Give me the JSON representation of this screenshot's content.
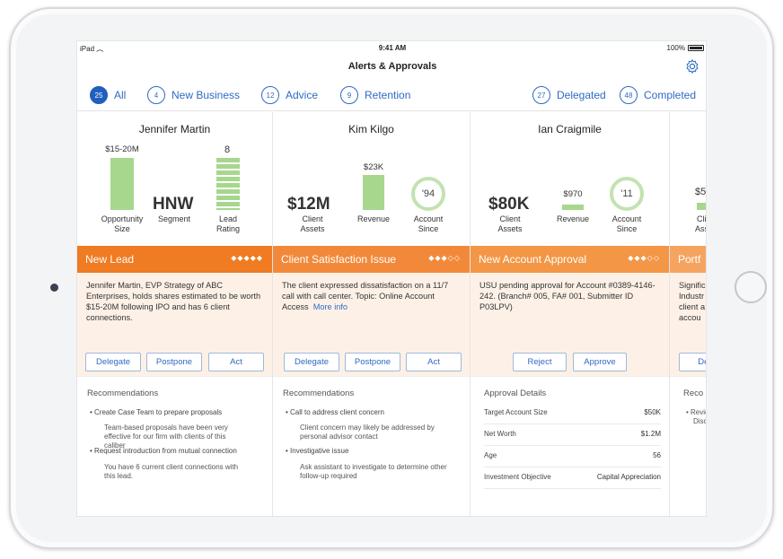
{
  "status": {
    "carrier": "iPad",
    "time": "9:41 AM",
    "battery": "100%"
  },
  "nav": {
    "title": "Alerts & Approvals"
  },
  "filters": [
    {
      "count": "25",
      "label": "All",
      "active": true
    },
    {
      "count": "4",
      "label": "New Business"
    },
    {
      "count": "12",
      "label": "Advice"
    },
    {
      "count": "9",
      "label": "Retention"
    },
    {
      "count": "27",
      "label": "Delegated"
    },
    {
      "count": "48",
      "label": "Completed"
    }
  ],
  "colors": {
    "orange": "#ef7b22",
    "light_orange": "#f49a4e",
    "bar_green": "#a7d78d",
    "ring_green": "#c3e2b1",
    "link_blue": "#2f6ac3"
  },
  "cards": [
    {
      "name": "Jennifer Martin",
      "metrics": {
        "opportunity_value": "$15-20M",
        "opportunity_label": "Opportunity\nSize",
        "segment_value": "HNW",
        "segment_label": "Segment",
        "lead_value": "8",
        "lead_label": "Lead\nRating"
      },
      "banner": {
        "title": "New Lead",
        "diamonds": "◆◆◆◆◆"
      },
      "body": "Jennifer Martin, EVP Strategy of ABC Enterprises, holds shares estimated to be worth $15-20M following IPO and has 6 client connections.",
      "buttons": [
        "Delegate",
        "Postpone",
        "Act"
      ],
      "rec_heading": "Recommendations",
      "recs": [
        {
          "bullet": "Create Case Team to prepare proposals",
          "sub": "Team-based proposals have been very effective for our firm with clients of this caliber"
        },
        {
          "bullet": "Request introduction from mutual connection",
          "sub": "You have 6 current client connections with this lead."
        }
      ]
    },
    {
      "name": "Kim Kilgo",
      "metrics": {
        "assets_value": "$12M",
        "assets_label": "Client\nAssets",
        "revenue_value": "$23K",
        "revenue_label": "Revenue",
        "since_value": "'94",
        "since_label": "Account\nSince"
      },
      "banner": {
        "title": "Client Satisfaction Issue",
        "diamonds": "◆◆◆◇◇"
      },
      "body": "The client expressed dissatisfaction on a 11/7 call with call center.  Topic: Online Account Access",
      "more": "More info",
      "buttons": [
        "Delegate",
        "Postpone",
        "Act"
      ],
      "rec_heading": "Recommendations",
      "recs": [
        {
          "bullet": "Call to address client concern",
          "sub": "Client concern may likely be addressed by personal advisor contact"
        },
        {
          "bullet": "Investigative issue",
          "sub": "Ask assistant to investigate to determine other follow-up required"
        }
      ]
    },
    {
      "name": "Ian Craigmile",
      "metrics": {
        "assets_value": "$80K",
        "assets_label": "Client\nAssets",
        "revenue_value": "$970",
        "revenue_label": "Revenue",
        "since_value": "'11",
        "since_label": "Account\nSince"
      },
      "banner": {
        "title": "New Account Approval",
        "diamonds": "◆◆◆◇◇"
      },
      "body": "USU pending approval for Account #0389-4146-242. (Branch# 005, FA# 001, Submitter ID P03LPV)",
      "buttons": [
        "Reject",
        "Approve"
      ],
      "rec_heading": "Approval Details",
      "details": [
        {
          "k": "Target Account Size",
          "v": "$50K"
        },
        {
          "k": "Net Worth",
          "v": "$1.2M"
        },
        {
          "k": "Age",
          "v": "56"
        },
        {
          "k": "Investment Objective",
          "v": "Capital Appreciation"
        }
      ]
    },
    {
      "partial": {
        "top": "$5",
        "label1": "Cli",
        "label2": "Ass",
        "banner": "Portf",
        "body": "Signific\nIndustr\nclient a\naccou",
        "button": "Dele",
        "rec": "Reco",
        "r1": "Revie",
        "r2": "Discu"
      }
    }
  ]
}
